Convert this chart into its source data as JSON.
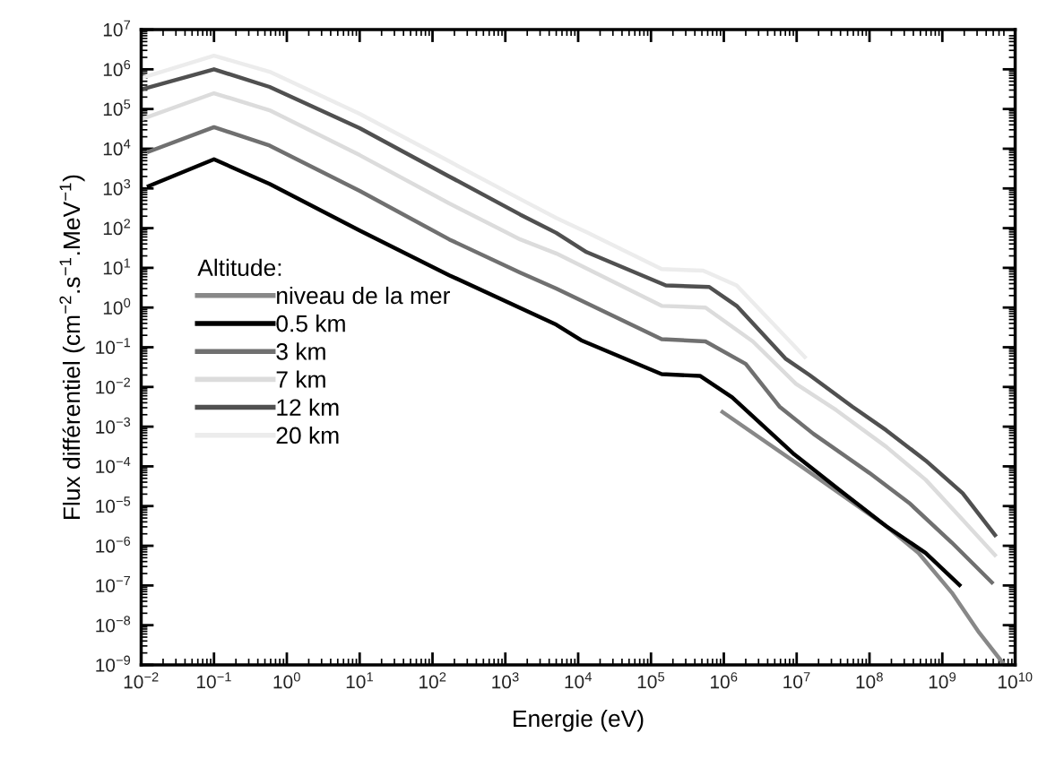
{
  "chart_data": {
    "type": "line",
    "xlabel": "Energie (eV)",
    "ylabel": "Flux différentiel (cm$^{−2}$.s$^{−1}$.MeV$^{−1}$)",
    "legend_title": "Altitude:",
    "legend": "center left",
    "log": "xy",
    "grid": false,
    "marker": "none",
    "line_style": "solid",
    "xlim": [
      0.01,
      10000000000
    ],
    "ylim": [
      1e-09,
      10000000
    ],
    "xticks": [
      {
        "value": 0.01,
        "label": "10$^{−2}$"
      },
      {
        "value": 0.1,
        "label": "10$^{−1}$"
      },
      {
        "value": 1,
        "label": "10$^{0}$"
      },
      {
        "value": 10,
        "label": "10$^{1}$"
      },
      {
        "value": 100,
        "label": "10$^{2}$"
      },
      {
        "value": 1000,
        "label": "10$^{3}$"
      },
      {
        "value": 10000,
        "label": "10$^{4}$"
      },
      {
        "value": 100000,
        "label": "10$^{5}$"
      },
      {
        "value": 1000000,
        "label": "10$^{6}$"
      },
      {
        "value": 10000000,
        "label": "10$^{7}$"
      },
      {
        "value": 100000000,
        "label": "10$^{8}$"
      },
      {
        "value": 1000000000,
        "label": "10$^{9}$"
      },
      {
        "value": 10000000000,
        "label": "10$^{10}$"
      }
    ],
    "yticks": [
      {
        "value": 1e-09,
        "label": "10$^{−9}$"
      },
      {
        "value": 1e-08,
        "label": "10$^{−8}$"
      },
      {
        "value": 1e-07,
        "label": "10$^{−7}$"
      },
      {
        "value": 1e-06,
        "label": "10$^{−6}$"
      },
      {
        "value": 1e-05,
        "label": "10$^{−5}$"
      },
      {
        "value": 0.0001,
        "label": "10$^{−4}$"
      },
      {
        "value": 0.001,
        "label": "10$^{−3}$"
      },
      {
        "value": 0.01,
        "label": "10$^{−2}$"
      },
      {
        "value": 0.1,
        "label": "10$^{−1}$"
      },
      {
        "value": 1,
        "label": "10$^{0}$"
      },
      {
        "value": 10,
        "label": "10$^{1}$"
      },
      {
        "value": 100,
        "label": "10$^{2}$"
      },
      {
        "value": 1000,
        "label": "10$^{3}$"
      },
      {
        "value": 10000,
        "label": "10$^{4}$"
      },
      {
        "value": 100000,
        "label": "10$^{5}$"
      },
      {
        "value": 1000000,
        "label": "10$^{6}$"
      },
      {
        "value": 10000000,
        "label": "10$^{7}$"
      }
    ],
    "series": [
      {
        "name": "niveau de la mer",
        "color": "#888888",
        "x": [
          910000,
          12000000,
          170000000,
          470000000,
          1350000000,
          3200000000,
          7100000000
        ],
        "values": [
          0.0025,
          9.5e-05,
          3.1e-06,
          6.6e-07,
          6.6e-08,
          6.5e-09,
          1e-09
        ]
      },
      {
        "name": "0.5 km",
        "color": "#000000",
        "x": [
          0.012,
          0.1,
          0.58,
          10,
          170,
          5000,
          11000,
          140000,
          470000,
          1300000,
          9000000,
          39000000,
          170000000,
          590000000,
          1800000000
        ],
        "values": [
          1100,
          5400,
          1300,
          87,
          6.5,
          0.37,
          0.15,
          0.021,
          0.019,
          0.0055,
          0.00021,
          2.5e-05,
          3.1e-06,
          6.6e-07,
          9.5e-08
        ]
      },
      {
        "name": "3 km",
        "color": "#707070",
        "x": [
          0.012,
          0.1,
          0.58,
          10,
          170,
          1600,
          5000,
          140000,
          560000,
          2000000,
          5800000,
          17000000,
          100000000,
          350000000,
          1350000000,
          5000000000
        ],
        "values": [
          8100,
          35000,
          12000,
          870,
          52,
          7.6,
          3.0,
          0.16,
          0.14,
          0.038,
          0.0032,
          0.00066,
          6.8e-05,
          1.2e-05,
          1.2e-06,
          1.1e-07
        ]
      },
      {
        "name": "7 km",
        "color": "#dcdcdc",
        "x": [
          0.01,
          0.1,
          0.58,
          10,
          170,
          1600,
          5000,
          140000,
          560000,
          2500000,
          9800000,
          35000000,
          170000000,
          590000000,
          1900000000,
          5500000000
        ],
        "values": [
          55000,
          250000,
          93000,
          6900,
          420,
          52,
          23,
          1.1,
          1.0,
          0.14,
          0.012,
          0.0026,
          0.00031,
          4.6e-05,
          4.5e-06,
          5.4e-07
        ]
      },
      {
        "name": "12 km",
        "color": "#505050",
        "x": [
          0.01,
          0.1,
          0.58,
          10,
          170,
          1600,
          5000,
          13000,
          160000,
          630000,
          1500000,
          7000000,
          15000000,
          58000000,
          170000000,
          590000000,
          1900000000,
          5500000000
        ],
        "values": [
          310000,
          1000000,
          360000,
          33000,
          2000,
          220,
          76,
          25,
          3.6,
          3.3,
          1.1,
          0.052,
          0.02,
          0.0032,
          0.00081,
          0.00014,
          2.1e-05,
          1.7e-06
        ]
      },
      {
        "name": "20 km",
        "color": "#ececec",
        "x": [
          0.01,
          0.1,
          0.58,
          10,
          170,
          1600,
          5000,
          13000,
          140000,
          520000,
          1500000,
          13500000
        ],
        "values": [
          600000,
          2200000,
          870000,
          76000,
          4800,
          540,
          180,
          79,
          9.3,
          8.5,
          3.6,
          0.052
        ]
      }
    ]
  }
}
